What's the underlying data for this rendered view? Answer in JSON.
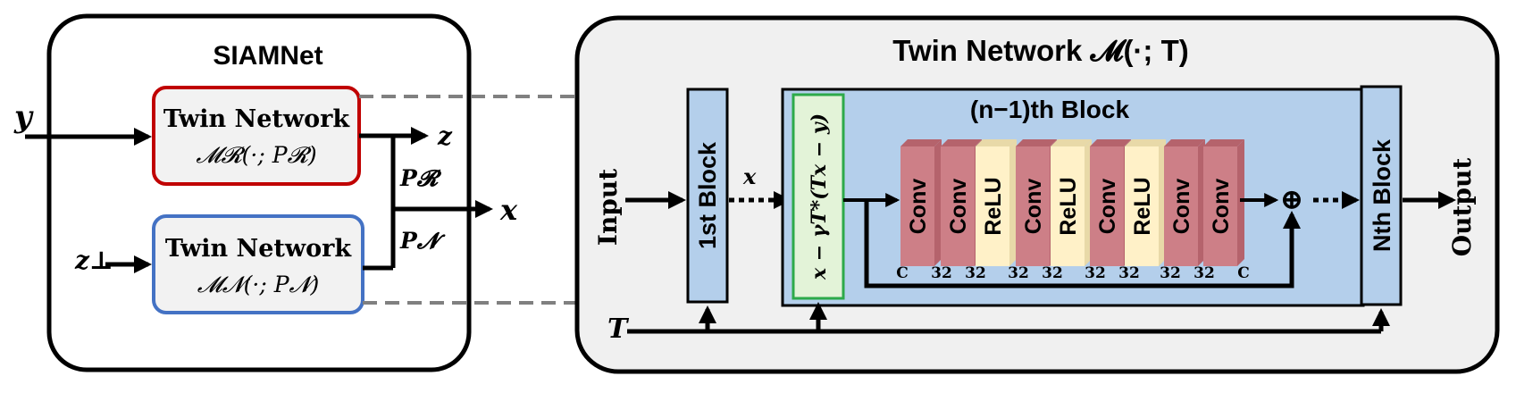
{
  "left_panel": {
    "title": "SIAMNet",
    "input_y": "y",
    "input_z_perp": "z⊥",
    "output_z": "z",
    "output_x": "x",
    "twin_top": {
      "title": "Twin Network",
      "formula": "𝓜𝓡(·; P𝓡)"
    },
    "twin_bottom": {
      "title": "Twin Network",
      "formula": "𝓜𝓝(·; P𝓝)"
    },
    "param_top": "P𝓡",
    "param_bottom": "P𝓝"
  },
  "right_panel": {
    "title": "Twin Network 𝓜(·; T)",
    "input_label": "Input",
    "output_label": "Output",
    "first_block": "1st Block",
    "nth_block": "Nth Block",
    "x_label": "x",
    "t_label": "T",
    "inner_block_title": "(n−1)th Block",
    "gradient_step": "x − γT*(Tx − y)",
    "layers": [
      {
        "type": "conv",
        "label": "Conv"
      },
      {
        "type": "conv",
        "label": "Conv"
      },
      {
        "type": "relu",
        "label": "ReLU"
      },
      {
        "type": "conv",
        "label": "Conv"
      },
      {
        "type": "relu",
        "label": "ReLU"
      },
      {
        "type": "conv",
        "label": "Conv"
      },
      {
        "type": "relu",
        "label": "ReLU"
      },
      {
        "type": "conv",
        "label": "Conv"
      },
      {
        "type": "conv",
        "label": "Conv"
      }
    ],
    "channel_labels": [
      "C",
      "32",
      "32",
      "32",
      "32",
      "32",
      "32",
      "32",
      "32",
      "C"
    ],
    "sum_symbol": "⊕"
  },
  "colors": {
    "red_border": "#c00000",
    "blue_border": "#4472c4",
    "block_fill": "#b4cfeb",
    "green_border": "#2daa4a",
    "green_fill": "#e3f3d8",
    "conv_fill": "#cd7f87",
    "relu_fill": "#fff1c8",
    "panel_fill": "#f0f0f0"
  }
}
